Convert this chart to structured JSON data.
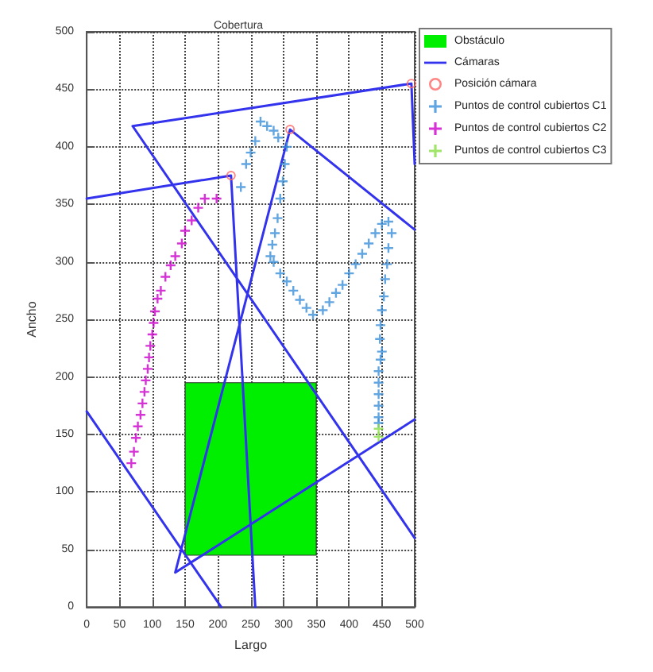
{
  "chart_data": {
    "type": "line",
    "title": "Cobertura",
    "xlabel": "Largo",
    "ylabel": "Ancho",
    "xlim": [
      0,
      500
    ],
    "ylim": [
      0,
      500
    ],
    "xticks": [
      0,
      50,
      100,
      150,
      200,
      250,
      300,
      350,
      400,
      450,
      500
    ],
    "yticks": [
      0,
      50,
      100,
      150,
      200,
      250,
      300,
      350,
      400,
      450,
      500
    ],
    "grid": true,
    "legend": "top right",
    "series": [
      {
        "name": "Obstáculo",
        "type": "area",
        "color": "#00ee00",
        "x": [
          150,
          150,
          350,
          350
        ],
        "values": [
          45,
          195,
          195,
          45
        ]
      },
      {
        "name": "Cámaras",
        "color": "#3333ee",
        "line_style": "solid",
        "marker": "none",
        "x": [
          0,
          220,
          257,
          null,
          500,
          310,
          135,
          500,
          null,
          70,
          495,
          500,
          null,
          70,
          500,
          null,
          0,
          205
        ],
        "values": [
          355,
          375,
          0,
          null,
          328,
          415,
          30,
          163,
          null,
          418,
          455,
          385,
          null,
          418,
          60,
          null,
          170,
          0
        ]
      },
      {
        "name": "Posición cámara",
        "type": "scatter",
        "color": "#ff6666",
        "marker": "circle",
        "x": [
          220,
          310,
          495
        ],
        "values": [
          375,
          415,
          455
        ]
      },
      {
        "name": "Puntos de control cubiertos C1",
        "type": "scatter",
        "color": "#3a8fd9",
        "marker": "cross",
        "x": [
          235,
          243,
          250,
          257,
          265,
          275,
          285,
          292,
          305,
          302,
          299,
          295,
          291,
          287,
          283,
          280,
          285,
          295,
          305,
          315,
          325,
          335,
          345,
          360,
          370,
          380,
          390,
          400,
          410,
          420,
          430,
          440,
          450,
          460,
          465,
          460,
          458,
          455,
          453,
          450,
          448,
          447,
          450,
          448,
          445,
          445,
          445,
          445,
          445,
          445
        ],
        "values": [
          365,
          385,
          395,
          405,
          422,
          418,
          414,
          408,
          400,
          385,
          370,
          355,
          338,
          325,
          315,
          305,
          300,
          290,
          283,
          275,
          267,
          260,
          254,
          258,
          265,
          273,
          280,
          290,
          298,
          307,
          316,
          325,
          333,
          335,
          325,
          312,
          298,
          285,
          270,
          258,
          245,
          233,
          222,
          215,
          205,
          195,
          185,
          175,
          165,
          160
        ]
      },
      {
        "name": "Puntos de control cubiertos C2",
        "type": "scatter",
        "color": "#cc00cc",
        "marker": "cross",
        "x": [
          68,
          72,
          75,
          78,
          82,
          85,
          88,
          90,
          93,
          95,
          97,
          100,
          102,
          104,
          108,
          113,
          120,
          128,
          135,
          145,
          150,
          160,
          170,
          180,
          198
        ],
        "values": [
          125,
          135,
          147,
          157,
          167,
          177,
          187,
          197,
          207,
          217,
          227,
          237,
          247,
          257,
          268,
          275,
          287,
          297,
          305,
          316,
          327,
          336,
          347,
          355,
          355
        ]
      },
      {
        "name": "Puntos de control cubiertos C3",
        "type": "scatter",
        "color": "#88dd44",
        "marker": "cross",
        "x": [
          445,
          445
        ],
        "values": [
          155,
          148
        ]
      }
    ]
  }
}
